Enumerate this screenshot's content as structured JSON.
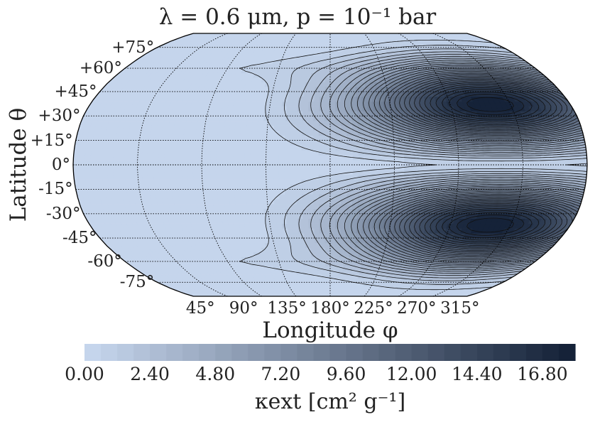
{
  "chart_data": {
    "type": "heatmap",
    "projection": "Robinson",
    "title": "λ = 0.6 μm, p = 10⁻¹ bar",
    "xlabel": "Longitude φ",
    "ylabel": "Latitude θ",
    "lat_ticks": [
      "+75°",
      "+60°",
      "+45°",
      "+30°",
      "+15°",
      "0°",
      "-15°",
      "-30°",
      "-45°",
      "-60°",
      "-75°"
    ],
    "lat_values": [
      75,
      60,
      45,
      30,
      15,
      0,
      -15,
      -30,
      -45,
      -60,
      -75
    ],
    "lon_ticks": [
      "45°",
      "90°",
      "135°",
      "180°",
      "225°",
      "270°",
      "315°"
    ],
    "lon_values": [
      45,
      90,
      135,
      180,
      225,
      270,
      315
    ],
    "colorbar": {
      "label": "κext [cm² g⁻¹]",
      "ticks": [
        "0.00",
        "2.40",
        "4.80",
        "7.20",
        "9.60",
        "12.00",
        "14.40",
        "16.80"
      ],
      "tick_values": [
        0,
        2.4,
        4.8,
        7.2,
        9.6,
        12.0,
        14.4,
        16.8
      ],
      "range": [
        0,
        18.0
      ],
      "levels": 30,
      "color_low": "#c5d5ec",
      "color_high": "#152238"
    },
    "field": {
      "description": "cloud extinction opacity; near zero on dayside (longitude ~0-100°), rising to maxima at ~±37° latitude, ~300° longitude",
      "peaks": [
        {
          "lon": 300,
          "lat": 37,
          "value": 18.0
        },
        {
          "lon": 300,
          "lat": -37,
          "value": 18.0
        }
      ],
      "min_value": 0.0
    }
  }
}
